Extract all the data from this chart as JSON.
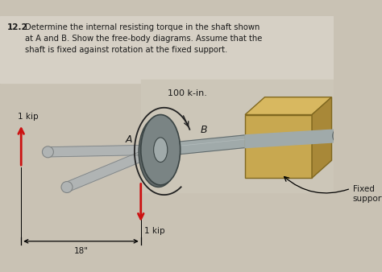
{
  "title_number": "12.2",
  "title_text": "Determine the internal resisting torque in the shaft shown\nat A and B. Show the free-body diagrams. Assume that the\nshaft is fixed against rotation at the fixed support.",
  "bg_color": "#c9c2b4",
  "bg_light": "#d6d0c5",
  "text_color": "#1a1a1a",
  "force_color": "#cc1111",
  "label_1kip_up": "1 kip",
  "label_1kip_down": "1 kip",
  "label_torque": "100 k-in.",
  "label_A": "A",
  "label_B": "B",
  "label_fixed": "Fixed\nsupport",
  "dim_label": "18\"",
  "shaft_color": "#a0aaaa",
  "shaft_mid": "#8a9292",
  "shaft_dark": "#606868",
  "disk_color": "#7a8484",
  "disk_edge": "#3a4444",
  "box_face": "#c8a850",
  "box_top": "#d8b860",
  "box_right": "#a88838",
  "box_edge": "#806820",
  "arm_color": "#b0b4b4",
  "arm_dark": "#808484",
  "arrow_curve_color": "#222222"
}
